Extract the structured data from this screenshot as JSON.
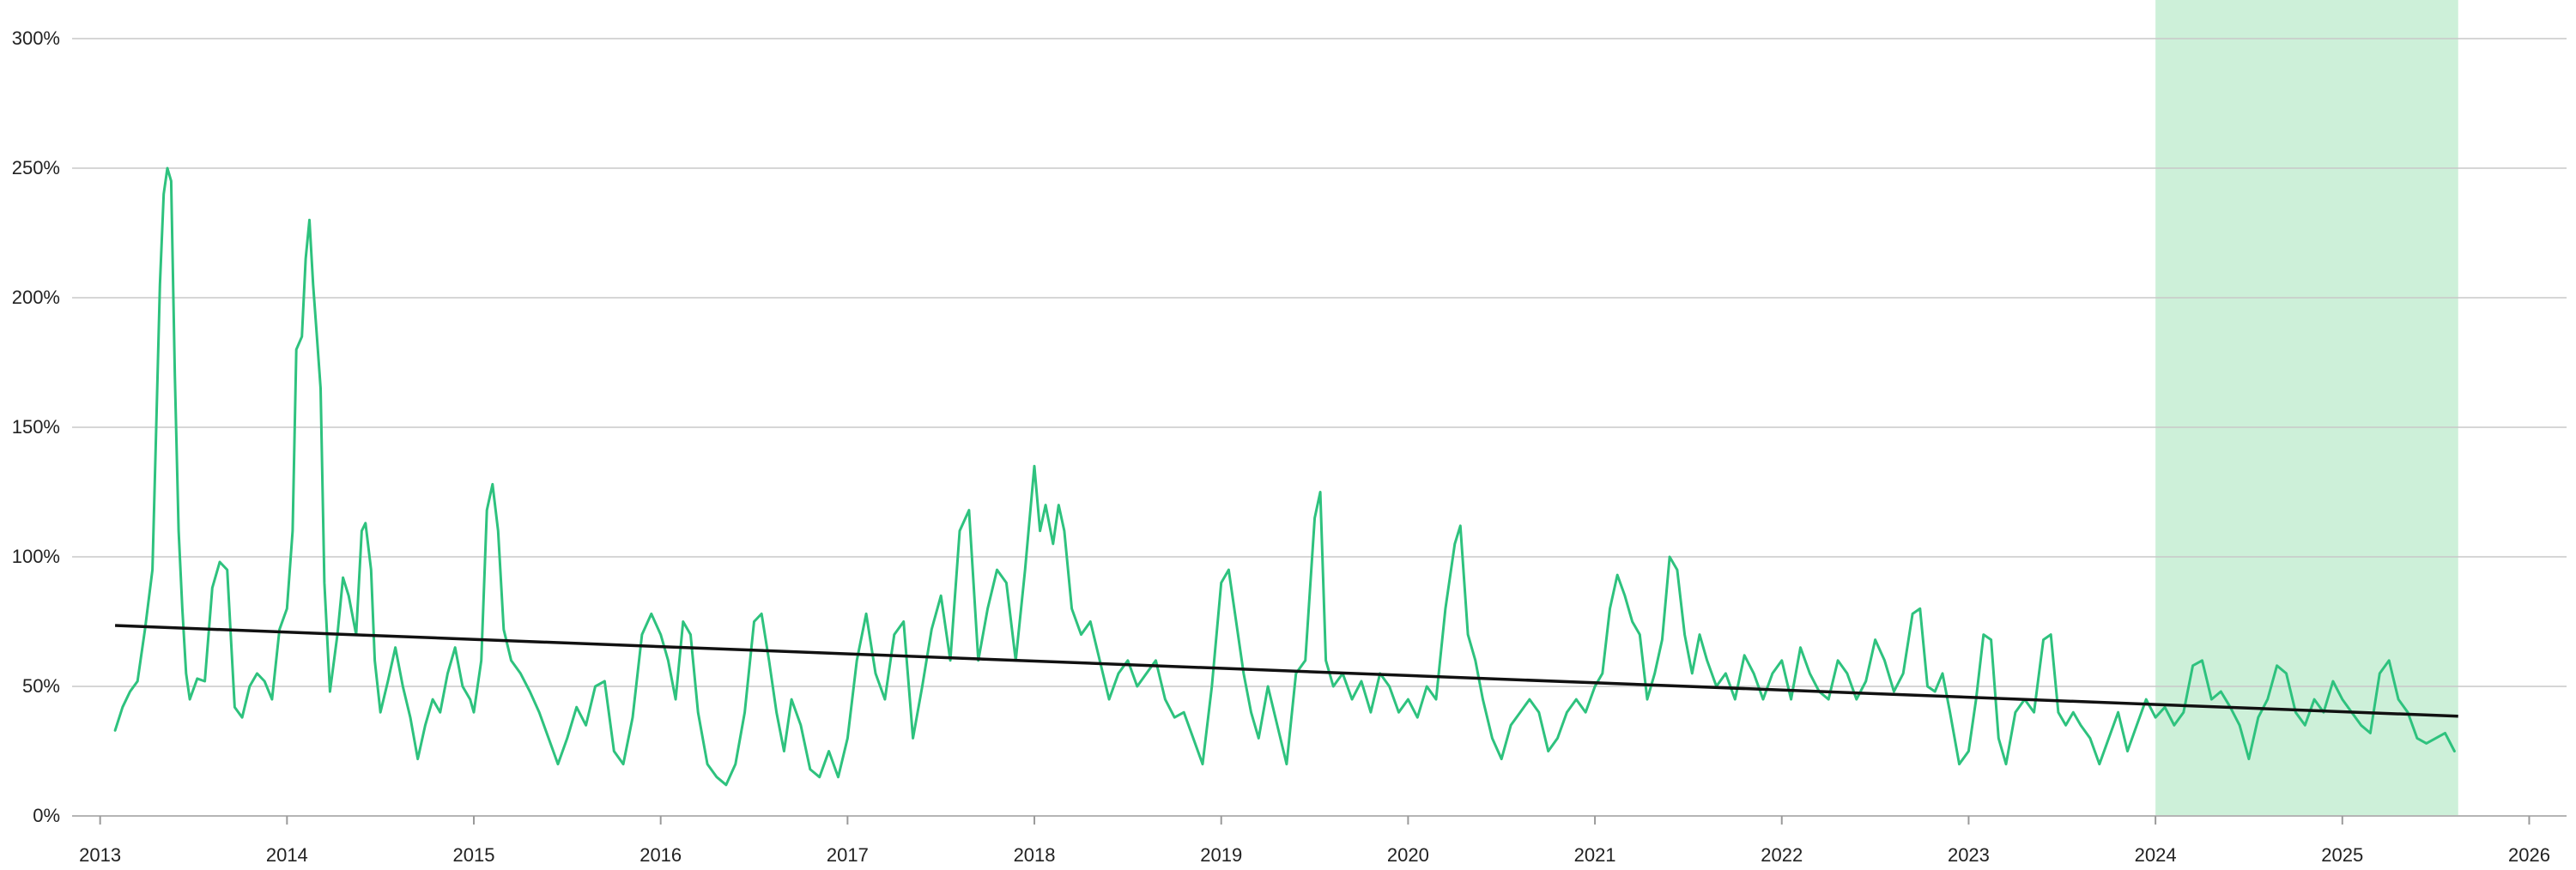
{
  "chart_data": {
    "type": "line",
    "title": "",
    "xlabel": "",
    "ylabel": "",
    "xlim": [
      2012.85,
      2026.2
    ],
    "ylim": [
      0,
      300
    ],
    "grid": true,
    "legend": "none",
    "x_ticks": [
      "2013",
      "2014",
      "2015",
      "2016",
      "2017",
      "2018",
      "2019",
      "2020",
      "2021",
      "2022",
      "2023",
      "2024",
      "2025",
      "2026"
    ],
    "y_ticks": [
      {
        "value": 0,
        "label": "0%"
      },
      {
        "value": 50,
        "label": "50%"
      },
      {
        "value": 100,
        "label": "100%"
      },
      {
        "value": 150,
        "label": "150%"
      },
      {
        "value": 200,
        "label": "200%"
      },
      {
        "value": 250,
        "label": "250%"
      },
      {
        "value": 300,
        "label": "300%"
      }
    ],
    "highlight_band": {
      "x_start": 2024.0,
      "x_end": 2025.62,
      "color": "#cdf0d9"
    },
    "series": [
      {
        "color": "#2ec27e",
        "points": [
          [
            2013.08,
            33
          ],
          [
            2013.12,
            42
          ],
          [
            2013.16,
            48
          ],
          [
            2013.2,
            52
          ],
          [
            2013.24,
            72
          ],
          [
            2013.28,
            95
          ],
          [
            2013.3,
            150
          ],
          [
            2013.32,
            205
          ],
          [
            2013.34,
            240
          ],
          [
            2013.36,
            250
          ],
          [
            2013.38,
            245
          ],
          [
            2013.4,
            170
          ],
          [
            2013.42,
            110
          ],
          [
            2013.44,
            80
          ],
          [
            2013.46,
            55
          ],
          [
            2013.48,
            45
          ],
          [
            2013.52,
            53
          ],
          [
            2013.56,
            52
          ],
          [
            2013.6,
            88
          ],
          [
            2013.64,
            98
          ],
          [
            2013.68,
            95
          ],
          [
            2013.72,
            42
          ],
          [
            2013.76,
            38
          ],
          [
            2013.8,
            50
          ],
          [
            2013.84,
            55
          ],
          [
            2013.88,
            52
          ],
          [
            2013.92,
            45
          ],
          [
            2013.96,
            72
          ],
          [
            2014.0,
            80
          ],
          [
            2014.03,
            110
          ],
          [
            2014.05,
            180
          ],
          [
            2014.08,
            185
          ],
          [
            2014.1,
            215
          ],
          [
            2014.12,
            230
          ],
          [
            2014.14,
            205
          ],
          [
            2014.16,
            185
          ],
          [
            2014.18,
            165
          ],
          [
            2014.2,
            90
          ],
          [
            2014.23,
            48
          ],
          [
            2014.27,
            70
          ],
          [
            2014.3,
            92
          ],
          [
            2014.33,
            85
          ],
          [
            2014.37,
            70
          ],
          [
            2014.4,
            110
          ],
          [
            2014.42,
            113
          ],
          [
            2014.45,
            95
          ],
          [
            2014.47,
            60
          ],
          [
            2014.5,
            40
          ],
          [
            2014.54,
            52
          ],
          [
            2014.58,
            65
          ],
          [
            2014.62,
            50
          ],
          [
            2014.66,
            38
          ],
          [
            2014.7,
            22
          ],
          [
            2014.74,
            35
          ],
          [
            2014.78,
            45
          ],
          [
            2014.82,
            40
          ],
          [
            2014.86,
            55
          ],
          [
            2014.9,
            65
          ],
          [
            2014.94,
            50
          ],
          [
            2014.98,
            45
          ],
          [
            2015.0,
            40
          ],
          [
            2015.04,
            60
          ],
          [
            2015.07,
            118
          ],
          [
            2015.1,
            128
          ],
          [
            2015.13,
            110
          ],
          [
            2015.16,
            72
          ],
          [
            2015.2,
            60
          ],
          [
            2015.25,
            55
          ],
          [
            2015.3,
            48
          ],
          [
            2015.35,
            40
          ],
          [
            2015.4,
            30
          ],
          [
            2015.45,
            20
          ],
          [
            2015.5,
            30
          ],
          [
            2015.55,
            42
          ],
          [
            2015.6,
            35
          ],
          [
            2015.65,
            50
          ],
          [
            2015.7,
            52
          ],
          [
            2015.75,
            25
          ],
          [
            2015.8,
            20
          ],
          [
            2015.85,
            38
          ],
          [
            2015.9,
            70
          ],
          [
            2015.95,
            78
          ],
          [
            2016.0,
            70
          ],
          [
            2016.04,
            60
          ],
          [
            2016.08,
            45
          ],
          [
            2016.12,
            75
          ],
          [
            2016.16,
            70
          ],
          [
            2016.2,
            40
          ],
          [
            2016.25,
            20
          ],
          [
            2016.3,
            15
          ],
          [
            2016.35,
            12
          ],
          [
            2016.4,
            20
          ],
          [
            2016.45,
            40
          ],
          [
            2016.5,
            75
          ],
          [
            2016.54,
            78
          ],
          [
            2016.58,
            60
          ],
          [
            2016.62,
            40
          ],
          [
            2016.66,
            25
          ],
          [
            2016.7,
            45
          ],
          [
            2016.75,
            35
          ],
          [
            2016.8,
            18
          ],
          [
            2016.85,
            15
          ],
          [
            2016.9,
            25
          ],
          [
            2016.95,
            15
          ],
          [
            2017.0,
            30
          ],
          [
            2017.05,
            60
          ],
          [
            2017.1,
            78
          ],
          [
            2017.15,
            55
          ],
          [
            2017.2,
            45
          ],
          [
            2017.25,
            70
          ],
          [
            2017.3,
            75
          ],
          [
            2017.35,
            30
          ],
          [
            2017.4,
            50
          ],
          [
            2017.45,
            72
          ],
          [
            2017.5,
            85
          ],
          [
            2017.55,
            60
          ],
          [
            2017.6,
            110
          ],
          [
            2017.65,
            118
          ],
          [
            2017.7,
            60
          ],
          [
            2017.75,
            80
          ],
          [
            2017.8,
            95
          ],
          [
            2017.85,
            90
          ],
          [
            2017.9,
            60
          ],
          [
            2017.95,
            95
          ],
          [
            2018.0,
            135
          ],
          [
            2018.03,
            110
          ],
          [
            2018.06,
            120
          ],
          [
            2018.1,
            105
          ],
          [
            2018.13,
            120
          ],
          [
            2018.16,
            110
          ],
          [
            2018.2,
            80
          ],
          [
            2018.25,
            70
          ],
          [
            2018.3,
            75
          ],
          [
            2018.35,
            60
          ],
          [
            2018.4,
            45
          ],
          [
            2018.45,
            55
          ],
          [
            2018.5,
            60
          ],
          [
            2018.55,
            50
          ],
          [
            2018.6,
            55
          ],
          [
            2018.65,
            60
          ],
          [
            2018.7,
            45
          ],
          [
            2018.75,
            38
          ],
          [
            2018.8,
            40
          ],
          [
            2018.85,
            30
          ],
          [
            2018.9,
            20
          ],
          [
            2018.95,
            50
          ],
          [
            2019.0,
            90
          ],
          [
            2019.04,
            95
          ],
          [
            2019.08,
            75
          ],
          [
            2019.12,
            55
          ],
          [
            2019.16,
            40
          ],
          [
            2019.2,
            30
          ],
          [
            2019.25,
            50
          ],
          [
            2019.3,
            35
          ],
          [
            2019.35,
            20
          ],
          [
            2019.4,
            55
          ],
          [
            2019.45,
            60
          ],
          [
            2019.5,
            115
          ],
          [
            2019.53,
            125
          ],
          [
            2019.56,
            60
          ],
          [
            2019.6,
            50
          ],
          [
            2019.65,
            55
          ],
          [
            2019.7,
            45
          ],
          [
            2019.75,
            52
          ],
          [
            2019.8,
            40
          ],
          [
            2019.85,
            55
          ],
          [
            2019.9,
            50
          ],
          [
            2019.95,
            40
          ],
          [
            2020.0,
            45
          ],
          [
            2020.05,
            38
          ],
          [
            2020.1,
            50
          ],
          [
            2020.15,
            45
          ],
          [
            2020.2,
            80
          ],
          [
            2020.25,
            105
          ],
          [
            2020.28,
            112
          ],
          [
            2020.32,
            70
          ],
          [
            2020.36,
            60
          ],
          [
            2020.4,
            45
          ],
          [
            2020.45,
            30
          ],
          [
            2020.5,
            22
          ],
          [
            2020.55,
            35
          ],
          [
            2020.6,
            40
          ],
          [
            2020.65,
            45
          ],
          [
            2020.7,
            40
          ],
          [
            2020.75,
            25
          ],
          [
            2020.8,
            30
          ],
          [
            2020.85,
            40
          ],
          [
            2020.9,
            45
          ],
          [
            2020.95,
            40
          ],
          [
            2021.0,
            50
          ],
          [
            2021.04,
            55
          ],
          [
            2021.08,
            80
          ],
          [
            2021.12,
            93
          ],
          [
            2021.16,
            85
          ],
          [
            2021.2,
            75
          ],
          [
            2021.24,
            70
          ],
          [
            2021.28,
            45
          ],
          [
            2021.32,
            55
          ],
          [
            2021.36,
            68
          ],
          [
            2021.4,
            100
          ],
          [
            2021.44,
            95
          ],
          [
            2021.48,
            70
          ],
          [
            2021.52,
            55
          ],
          [
            2021.56,
            70
          ],
          [
            2021.6,
            60
          ],
          [
            2021.65,
            50
          ],
          [
            2021.7,
            55
          ],
          [
            2021.75,
            45
          ],
          [
            2021.8,
            62
          ],
          [
            2021.85,
            55
          ],
          [
            2021.9,
            45
          ],
          [
            2021.95,
            55
          ],
          [
            2022.0,
            60
          ],
          [
            2022.05,
            45
          ],
          [
            2022.1,
            65
          ],
          [
            2022.15,
            55
          ],
          [
            2022.2,
            48
          ],
          [
            2022.25,
            45
          ],
          [
            2022.3,
            60
          ],
          [
            2022.35,
            55
          ],
          [
            2022.4,
            45
          ],
          [
            2022.45,
            52
          ],
          [
            2022.5,
            68
          ],
          [
            2022.55,
            60
          ],
          [
            2022.6,
            48
          ],
          [
            2022.65,
            55
          ],
          [
            2022.7,
            78
          ],
          [
            2022.74,
            80
          ],
          [
            2022.78,
            50
          ],
          [
            2022.82,
            48
          ],
          [
            2022.86,
            55
          ],
          [
            2022.9,
            40
          ],
          [
            2022.95,
            20
          ],
          [
            2023.0,
            25
          ],
          [
            2023.04,
            45
          ],
          [
            2023.08,
            70
          ],
          [
            2023.12,
            68
          ],
          [
            2023.16,
            30
          ],
          [
            2023.2,
            20
          ],
          [
            2023.25,
            40
          ],
          [
            2023.3,
            45
          ],
          [
            2023.35,
            40
          ],
          [
            2023.4,
            68
          ],
          [
            2023.44,
            70
          ],
          [
            2023.48,
            40
          ],
          [
            2023.52,
            35
          ],
          [
            2023.56,
            40
          ],
          [
            2023.6,
            35
          ],
          [
            2023.65,
            30
          ],
          [
            2023.7,
            20
          ],
          [
            2023.75,
            30
          ],
          [
            2023.8,
            40
          ],
          [
            2023.85,
            25
          ],
          [
            2023.9,
            35
          ],
          [
            2023.95,
            45
          ],
          [
            2024.0,
            38
          ],
          [
            2024.05,
            42
          ],
          [
            2024.1,
            35
          ],
          [
            2024.15,
            40
          ],
          [
            2024.2,
            58
          ],
          [
            2024.25,
            60
          ],
          [
            2024.3,
            45
          ],
          [
            2024.35,
            48
          ],
          [
            2024.4,
            42
          ],
          [
            2024.45,
            35
          ],
          [
            2024.5,
            22
          ],
          [
            2024.55,
            38
          ],
          [
            2024.6,
            45
          ],
          [
            2024.65,
            58
          ],
          [
            2024.7,
            55
          ],
          [
            2024.75,
            40
          ],
          [
            2024.8,
            35
          ],
          [
            2024.85,
            45
          ],
          [
            2024.9,
            40
          ],
          [
            2024.95,
            52
          ],
          [
            2025.0,
            45
          ],
          [
            2025.05,
            40
          ],
          [
            2025.1,
            35
          ],
          [
            2025.15,
            32
          ],
          [
            2025.2,
            55
          ],
          [
            2025.25,
            60
          ],
          [
            2025.3,
            45
          ],
          [
            2025.35,
            40
          ],
          [
            2025.4,
            30
          ],
          [
            2025.45,
            28
          ],
          [
            2025.5,
            30
          ],
          [
            2025.55,
            32
          ],
          [
            2025.6,
            25
          ]
        ]
      },
      {
        "color": "#111111",
        "trend": true,
        "points": [
          [
            2013.08,
            73.5
          ],
          [
            2025.62,
            38.5
          ]
        ]
      }
    ]
  }
}
